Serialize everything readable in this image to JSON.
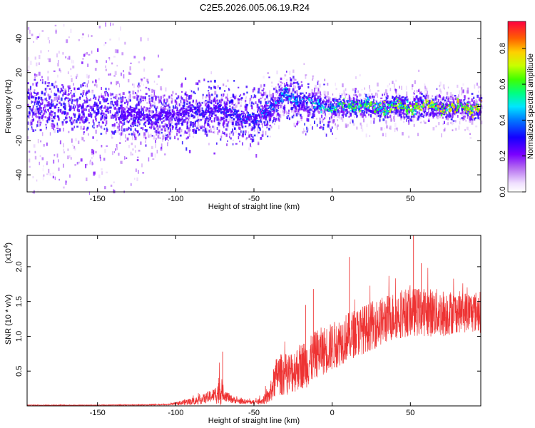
{
  "title": "C2E5.2026.005.06.19.R24",
  "chart_data": [
    {
      "type": "heatmap",
      "name": "spectrogram",
      "xlabel": "Height of straight line (km)",
      "ylabel": "Frequency (Hz)",
      "xlim": [
        -195,
        95
      ],
      "ylim": [
        -50,
        50
      ],
      "xticks": [
        -150,
        -100,
        -50,
        0,
        50
      ],
      "yticks": [
        -40,
        -20,
        0,
        20,
        40
      ],
      "xtick_labels": [
        "-150",
        "-100",
        "-50",
        "0",
        "50"
      ],
      "ytick_labels": [
        "-40",
        "-20",
        "0",
        "20",
        "40"
      ],
      "colorbar": {
        "label": "Normalized spectral amplitude",
        "range": [
          0,
          0.95
        ],
        "ticks": [
          0,
          0.2,
          0.4,
          0.6,
          0.8
        ],
        "tick_labels": [
          "0.0",
          "0.2",
          "0.4",
          "0.6",
          "0.8"
        ]
      },
      "ridge": {
        "height_km": [
          -195,
          -170,
          -150,
          -130,
          -110,
          -100,
          -90,
          -80,
          -70,
          -60,
          -55,
          -50,
          -45,
          -40,
          -35,
          -30,
          -25,
          -20,
          -10,
          0,
          10,
          20,
          30,
          40,
          50,
          60,
          70,
          80,
          90,
          95
        ],
        "center_hz": [
          2,
          0,
          -2,
          -4,
          -6,
          -4,
          -2,
          -1,
          -2,
          -4,
          -6,
          -8,
          -2,
          0,
          2,
          8,
          5,
          3,
          2,
          0,
          1,
          1,
          0,
          1,
          0,
          1,
          0,
          0,
          0,
          0
        ],
        "amplitude": [
          0.2,
          0.2,
          0.2,
          0.22,
          0.25,
          0.3,
          0.35,
          0.38,
          0.4,
          0.42,
          0.42,
          0.45,
          0.48,
          0.5,
          0.55,
          0.55,
          0.52,
          0.55,
          0.6,
          0.65,
          0.7,
          0.72,
          0.75,
          0.78,
          0.8,
          0.82,
          0.85,
          0.88,
          0.9,
          0.92
        ]
      }
    },
    {
      "type": "line",
      "name": "snr",
      "xlabel": "Height of straight line (km)",
      "ylabel": "SNR (10 * v/v)",
      "scale_label": "(x10",
      "scale_exp": "4",
      "scale_close": ")",
      "xlim": [
        -195,
        95
      ],
      "ylim": [
        0,
        2.45
      ],
      "xticks": [
        -150,
        -100,
        -50,
        0,
        50
      ],
      "yticks": [
        0.5,
        1.0,
        1.5,
        2.0
      ],
      "xtick_labels": [
        "-150",
        "-100",
        "-50",
        "0",
        "50"
      ],
      "ytick_labels": [
        "0.5",
        "1.0",
        "1.5",
        "2.0"
      ],
      "color": "#ee3333",
      "envelope": {
        "x": [
          -195,
          -150,
          -120,
          -105,
          -100,
          -95,
          -85,
          -80,
          -75,
          -72,
          -70,
          -65,
          -60,
          -50,
          -45,
          -40,
          -37,
          -35,
          -30,
          -25,
          -20,
          -15,
          -10,
          -5,
          0,
          10,
          20,
          30,
          40,
          50,
          60,
          70,
          80,
          90,
          95
        ],
        "mean": [
          0.01,
          0.01,
          0.015,
          0.02,
          0.03,
          0.05,
          0.08,
          0.12,
          0.16,
          0.22,
          0.18,
          0.1,
          0.07,
          0.05,
          0.07,
          0.15,
          0.35,
          0.45,
          0.45,
          0.5,
          0.58,
          0.62,
          0.75,
          0.8,
          0.85,
          1.0,
          1.1,
          1.2,
          1.3,
          1.35,
          1.35,
          1.33,
          1.35,
          1.35,
          1.35
        ],
        "spread": [
          0.005,
          0.005,
          0.008,
          0.01,
          0.02,
          0.04,
          0.06,
          0.08,
          0.1,
          0.25,
          0.1,
          0.06,
          0.04,
          0.03,
          0.05,
          0.12,
          0.25,
          0.3,
          0.3,
          0.32,
          0.34,
          0.35,
          0.35,
          0.35,
          0.35,
          0.35,
          0.35,
          0.35,
          0.35,
          0.35,
          0.35,
          0.35,
          0.3,
          0.3,
          0.3
        ]
      },
      "peaks": [
        {
          "x": -70,
          "y": 0.78
        },
        {
          "x": -17,
          "y": 1.45
        },
        {
          "x": -12,
          "y": 1.68
        },
        {
          "x": 11,
          "y": 2.14
        },
        {
          "x": 52,
          "y": 2.45
        },
        {
          "x": 57,
          "y": 2.05
        }
      ]
    }
  ]
}
